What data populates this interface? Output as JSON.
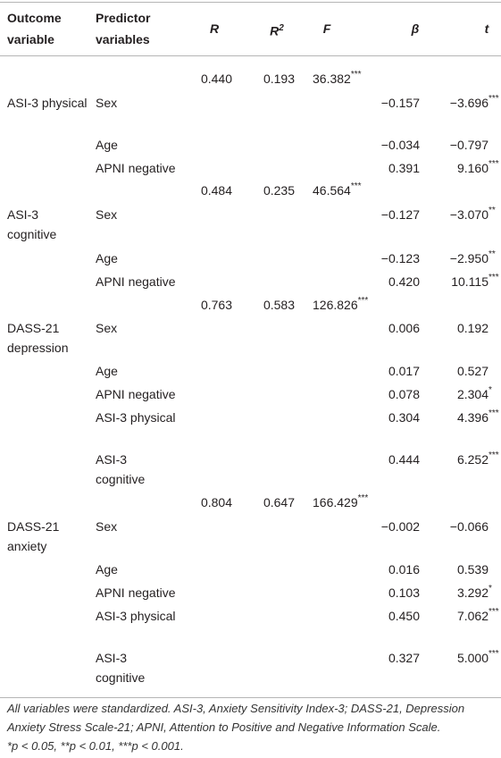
{
  "table": {
    "header": [
      "Outcome variable",
      "Predictor variables",
      "R",
      {
        "value": "R",
        "sup": "2"
      },
      "F",
      "β",
      "t"
    ],
    "rows": [
      [
        null,
        null,
        "0.440",
        "0.193",
        {
          "value": "36.382",
          "sup": "***"
        },
        null,
        null
      ],
      [
        "ASI-3 physical",
        "Sex",
        null,
        null,
        null,
        "−0.157",
        {
          "value": "−3.696",
          "sup": "***"
        }
      ],
      [
        null,
        "Age",
        null,
        null,
        null,
        "−0.034",
        "−0.797"
      ],
      [
        null,
        "APNI negative",
        null,
        null,
        null,
        "0.391",
        {
          "value": "9.160",
          "sup": "***"
        }
      ],
      [
        null,
        null,
        "0.484",
        "0.235",
        {
          "value": "46.564",
          "sup": "***"
        },
        null,
        null
      ],
      [
        "ASI-3 cognitive",
        "Sex",
        null,
        null,
        null,
        "−0.127",
        {
          "value": "−3.070",
          "sup": "**"
        }
      ],
      [
        null,
        "Age",
        null,
        null,
        null,
        "−0.123",
        {
          "value": "−2.950",
          "sup": "**"
        }
      ],
      [
        null,
        "APNI negative",
        null,
        null,
        null,
        "0.420",
        {
          "value": "10.115",
          "sup": "***"
        }
      ],
      [
        null,
        null,
        "0.763",
        "0.583",
        {
          "value": "126.826",
          "sup": "***"
        },
        null,
        null
      ],
      [
        "DASS-21 depression",
        "Sex",
        null,
        null,
        null,
        "0.006",
        "0.192"
      ],
      [
        null,
        "Age",
        null,
        null,
        null,
        "0.017",
        "0.527"
      ],
      [
        null,
        "APNI negative",
        null,
        null,
        null,
        "0.078",
        {
          "value": "2.304",
          "sup": "*"
        }
      ],
      [
        null,
        "ASI-3 physical",
        null,
        null,
        null,
        "0.304",
        {
          "value": "4.396",
          "sup": "***"
        }
      ],
      [
        null,
        "ASI-3 cognitive",
        null,
        null,
        null,
        "0.444",
        {
          "value": "6.252",
          "sup": "***"
        }
      ],
      [
        null,
        null,
        "0.804",
        "0.647",
        {
          "value": "166.429",
          "sup": "***"
        },
        null,
        null
      ],
      [
        "DASS-21 anxiety",
        "Sex",
        null,
        null,
        null,
        "−0.002",
        "−0.066"
      ],
      [
        null,
        "Age",
        null,
        null,
        null,
        "0.016",
        "0.539"
      ],
      [
        null,
        "APNI negative",
        null,
        null,
        null,
        "0.103",
        {
          "value": "3.292",
          "sup": "*"
        }
      ],
      [
        null,
        "ASI-3 physical",
        null,
        null,
        null,
        "0.450",
        {
          "value": "7.062",
          "sup": "***"
        }
      ],
      [
        null,
        "ASI-3 cognitive",
        null,
        null,
        null,
        "0.327",
        {
          "value": "5.000",
          "sup": "***"
        }
      ]
    ]
  },
  "footnote": {
    "note": "All variables were standardized. ASI-3, Anxiety Sensitivity Index-3; DASS-21, Depression Anxiety Stress Scale-21; APNI, Attention to Positive and Negative Information Scale.",
    "significance": "*p < 0.05, **p < 0.01, ***p < 0.001."
  }
}
